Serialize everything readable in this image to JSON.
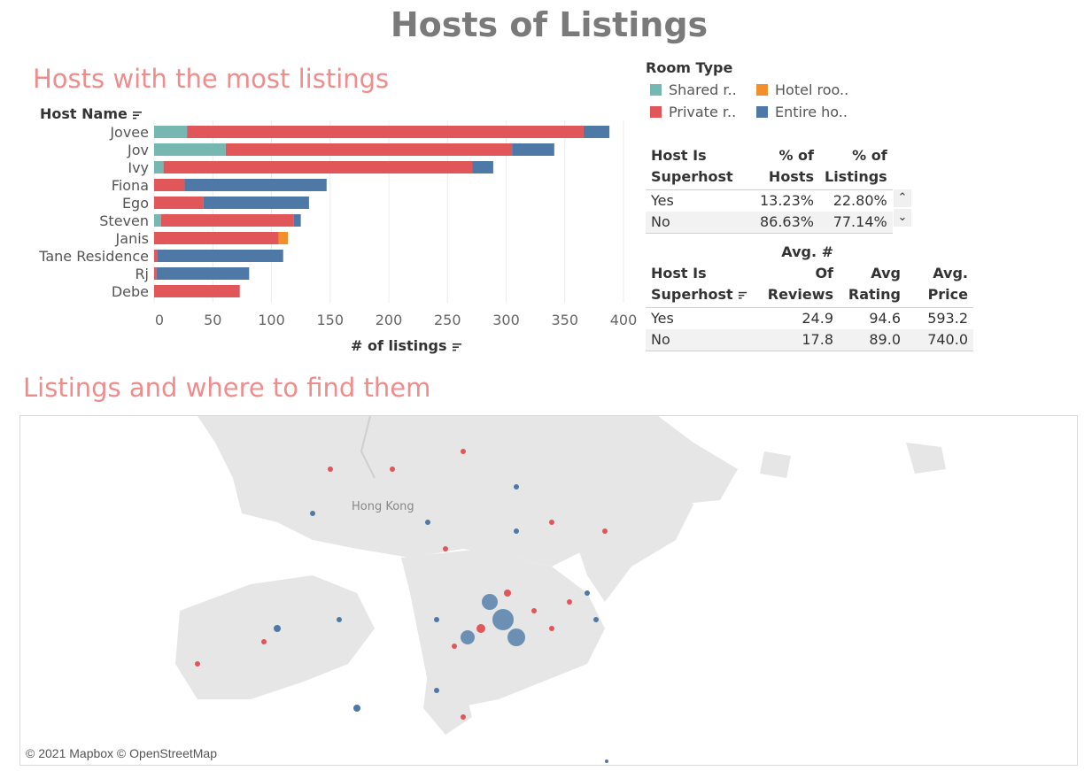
{
  "dashboard_title": "Hosts of Listings",
  "bar_section_title": "Hosts with the most listings",
  "map_section_title": "Listings and where to find them",
  "host_name_header": "Host Name",
  "colors": {
    "shared": "#76b7b2",
    "private": "#e15759",
    "hotel": "#f28e2b",
    "entire": "#4e79a7"
  },
  "chart_data": {
    "type": "bar",
    "orientation": "horizontal",
    "stacked": true,
    "xlabel": "# of listings",
    "ylabel": "Host Name",
    "xlim": [
      0,
      400
    ],
    "xticks": [
      0,
      50,
      100,
      150,
      200,
      250,
      300,
      350,
      400
    ],
    "categories": [
      "Jovee",
      "Jov",
      "Ivy",
      "Fiona",
      "Ego",
      "Steven",
      "Janis",
      "Tane Residence",
      "Rj",
      "Debe"
    ],
    "series": [
      {
        "name": "Shared r..",
        "key": "shared",
        "values": [
          28,
          61,
          8,
          0,
          0,
          6,
          0,
          0,
          0,
          0
        ]
      },
      {
        "name": "Private r..",
        "key": "private",
        "values": [
          338,
          244,
          263,
          26,
          42,
          113,
          106,
          3,
          2,
          73
        ]
      },
      {
        "name": "Hotel roo..",
        "key": "hotel",
        "values": [
          0,
          0,
          0,
          0,
          0,
          0,
          8,
          0,
          0,
          0
        ]
      },
      {
        "name": "Entire ho..",
        "key": "entire",
        "values": [
          22,
          36,
          18,
          121,
          90,
          6,
          0,
          107,
          79,
          0
        ]
      }
    ],
    "grid": true
  },
  "legend": {
    "title": "Room Type",
    "items": [
      {
        "label": "Shared r..",
        "key": "shared"
      },
      {
        "label": "Hotel roo..",
        "key": "hotel"
      },
      {
        "label": "Private r..",
        "key": "private"
      },
      {
        "label": "Entire ho..",
        "key": "entire"
      }
    ]
  },
  "table1": {
    "col1": "Host Is Superhost",
    "col2": "% of Hosts",
    "col3": "% of Listings",
    "rows": [
      {
        "label": "Yes",
        "hosts": "13.23%",
        "listings": "22.80%"
      },
      {
        "label": "No",
        "hosts": "86.63%",
        "listings": "77.14%"
      }
    ],
    "scroll_up": "⌃",
    "scroll_down": "⌄"
  },
  "table2": {
    "col1": "Host Is Superhost",
    "col2": "Avg. # Of Reviews",
    "col3": "Avg Rating",
    "col4": "Avg. Price",
    "rows": [
      {
        "label": "Yes",
        "reviews": "24.9",
        "rating": "94.6",
        "price": "593.2"
      },
      {
        "label": "No",
        "reviews": "17.8",
        "rating": "89.0",
        "price": "740.0"
      }
    ]
  },
  "map": {
    "city_label": "Hong Kong",
    "attribution": "© 2021 Mapbox © OpenStreetMap"
  }
}
